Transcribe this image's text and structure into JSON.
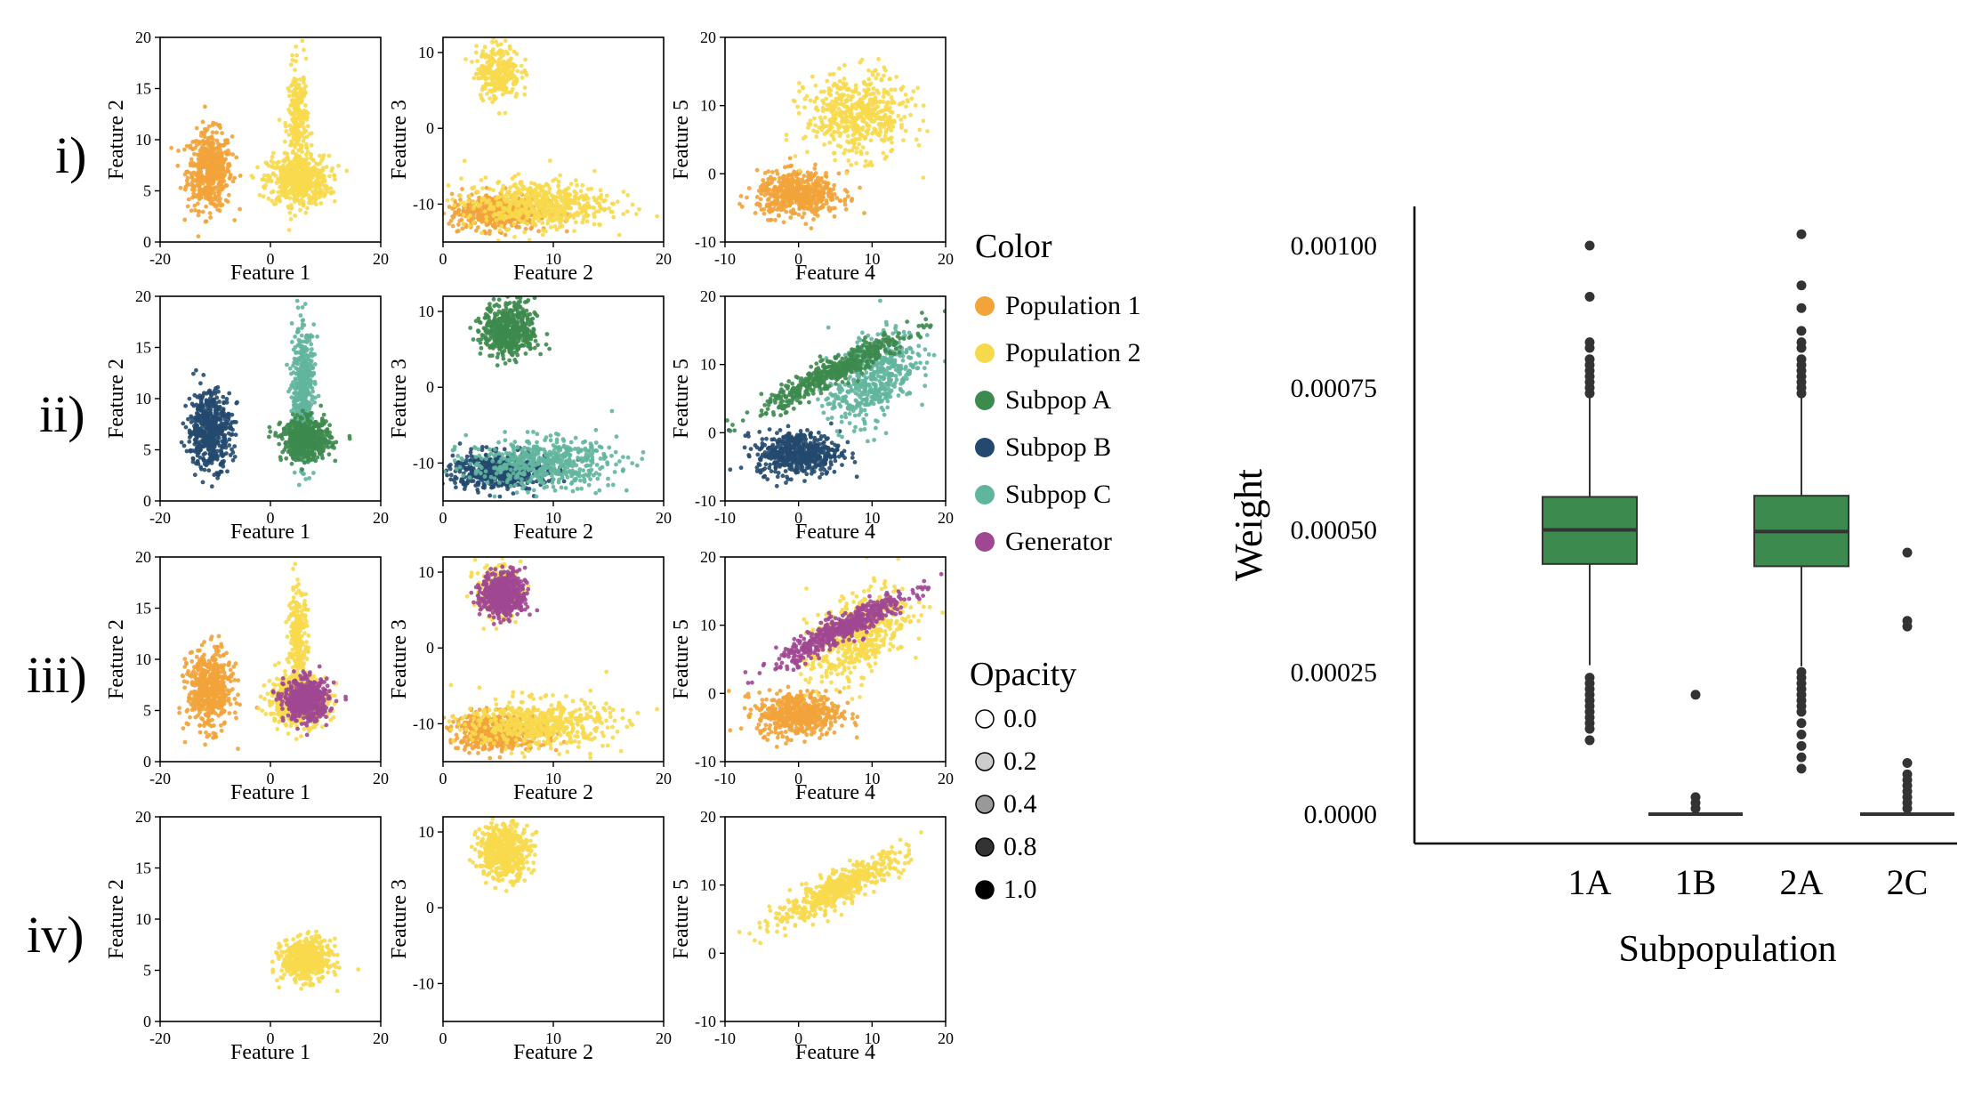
{
  "scatter_figure": {
    "row_labels": [
      "i)",
      "ii)",
      "iii)",
      "iv)"
    ],
    "panel_axes": [
      {
        "xlabel": "Feature 1",
        "ylabel": "Feature 2",
        "xticks": [
          -20,
          0,
          20
        ],
        "yticks": [
          0,
          5,
          10,
          15,
          20
        ],
        "xlim": [
          -20,
          20
        ],
        "ylim": [
          0,
          20
        ]
      },
      {
        "xlabel": "Feature 2",
        "ylabel": "Feature 3",
        "xticks": [
          0,
          10,
          20
        ],
        "yticks": [
          -10,
          0,
          10
        ],
        "xlim": [
          0,
          20
        ],
        "ylim": [
          -15,
          12
        ]
      },
      {
        "xlabel": "Feature 4",
        "ylabel": "Feature 5",
        "xticks": [
          -10,
          0,
          10,
          20
        ],
        "yticks": [
          -10,
          0,
          10,
          20
        ],
        "xlim": [
          -10,
          20
        ],
        "ylim": [
          -10,
          20
        ]
      }
    ]
  },
  "legend": {
    "color_title": "Color",
    "color_items": [
      {
        "label": "Population 1",
        "color": "#f2a33a"
      },
      {
        "label": "Population 2",
        "color": "#f7d94c"
      },
      {
        "label": "Subpop A",
        "color": "#3d8a4e"
      },
      {
        "label": "Subpop B",
        "color": "#24496e"
      },
      {
        "label": "Subpop C",
        "color": "#62b59d"
      },
      {
        "label": "Generator",
        "color": "#a04792"
      }
    ],
    "opacity_title": "Opacity",
    "opacity_items": [
      {
        "label": "0.0",
        "value": 0.0
      },
      {
        "label": "0.2",
        "value": 0.2
      },
      {
        "label": "0.4",
        "value": 0.4
      },
      {
        "label": "0.8",
        "value": 0.8
      },
      {
        "label": "1.0",
        "value": 1.0
      }
    ]
  },
  "chart_data": [
    {
      "type": "scatter",
      "description_rows": "clusters per row and panel (means and spreads in data units)",
      "rows": [
        {
          "label": "i)",
          "clusters": [
            {
              "name": "Population 1",
              "color": "#f2a33a",
              "panels": [
                {
                  "cx": -11,
                  "cy": 7,
                  "sx": 2,
                  "sy": 1.9
                },
                {
                  "cx": 5,
                  "cy": -11,
                  "sx": 2.2,
                  "sy": 1.2
                },
                {
                  "cx": 0,
                  "cy": -3,
                  "sx": 2.8,
                  "sy": 1.6
                }
              ]
            },
            {
              "name": "Population 2",
              "color": "#f7d94c",
              "panels": [
                {
                  "cx": 5,
                  "cy": 6,
                  "sx": 2.8,
                  "sy": 1.2,
                  "extra": {
                    "cx": 5,
                    "cy": 11.5,
                    "sx": 0.9,
                    "sy": 2.8
                  }
                },
                {
                  "cx": 8.5,
                  "cy": -10,
                  "sx": 3.3,
                  "sy": 1.6,
                  "extra": {
                    "cx": 5,
                    "cy": 7.5,
                    "sx": 1,
                    "sy": 1.8
                  }
                },
                {
                  "cx": 8,
                  "cy": 8.5,
                  "sx": 3.5,
                  "sy": 3
                }
              ]
            }
          ]
        },
        {
          "label": "ii)",
          "clusters": [
            {
              "name": "Subpop B",
              "color": "#24496e",
              "panels": [
                {
                  "cx": -11,
                  "cy": 7,
                  "sx": 2,
                  "sy": 1.9
                },
                {
                  "cx": 5,
                  "cy": -11,
                  "sx": 2.2,
                  "sy": 1.2
                },
                {
                  "cx": 0,
                  "cy": -3,
                  "sx": 2.8,
                  "sy": 1.6
                }
              ]
            },
            {
              "name": "Subpop C",
              "color": "#62b59d",
              "panels": [
                {
                  "cx": 6,
                  "cy": 10.5,
                  "sx": 1,
                  "sy": 3.2
                },
                {
                  "cx": 9,
                  "cy": -10,
                  "sx": 3.3,
                  "sy": 1.6
                },
                {
                  "cx": 10,
                  "cy": 8,
                  "sx": 3,
                  "sy": 3
                }
              ]
            },
            {
              "name": "Subpop A",
              "color": "#3d8a4e",
              "panels": [
                {
                  "cx": 6.5,
                  "cy": 6,
                  "sx": 2.2,
                  "sy": 1
                },
                {
                  "cx": 6,
                  "cy": 7.5,
                  "sx": 1.2,
                  "sy": 1.8
                },
                {
                  "cx": 5,
                  "cy": 9,
                  "sx": 5,
                  "sy": 1
                }
              ]
            }
          ]
        },
        {
          "label": "iii)",
          "clusters": [
            {
              "name": "Population 1",
              "color": "#f2a33a",
              "panels": [
                {
                  "cx": -11,
                  "cy": 7,
                  "sx": 2,
                  "sy": 1.9
                },
                {
                  "cx": 5,
                  "cy": -11,
                  "sx": 2.2,
                  "sy": 1.2
                },
                {
                  "cx": 0,
                  "cy": -3,
                  "sx": 2.8,
                  "sy": 1.6
                }
              ]
            },
            {
              "name": "Population 2",
              "color": "#f7d94c",
              "panels": [
                {
                  "cx": 5,
                  "cy": 6,
                  "sx": 2.8,
                  "sy": 1.2,
                  "extra": {
                    "cx": 5,
                    "cy": 11.5,
                    "sx": 0.9,
                    "sy": 2.8
                  }
                },
                {
                  "cx": 8.5,
                  "cy": -10,
                  "sx": 3.3,
                  "sy": 1.6,
                  "extra": {
                    "cx": 5,
                    "cy": 7.5,
                    "sx": 1,
                    "sy": 1.8
                  }
                },
                {
                  "cx": 8,
                  "cy": 8.5,
                  "sx": 3.5,
                  "sy": 3
                }
              ]
            },
            {
              "name": "Generator",
              "color": "#a04792",
              "panels": [
                {
                  "cx": 6.5,
                  "cy": 6,
                  "sx": 2,
                  "sy": 1
                },
                {
                  "cx": 5.5,
                  "cy": 7,
                  "sx": 1,
                  "sy": 1.5
                },
                {
                  "cx": 6,
                  "cy": 9.5,
                  "sx": 4.5,
                  "sy": 1
                }
              ]
            }
          ]
        },
        {
          "label": "iv)",
          "clusters": [
            {
              "name": "Population 2",
              "color": "#f7d94c",
              "panels": [
                {
                  "cx": 6.5,
                  "cy": 6,
                  "sx": 2.2,
                  "sy": 1
                },
                {
                  "cx": 5.5,
                  "cy": 7.5,
                  "sx": 1.2,
                  "sy": 1.8
                },
                {
                  "cx": 5.5,
                  "cy": 9.5,
                  "sx": 4.5,
                  "sy": 1.2
                }
              ]
            }
          ]
        }
      ]
    },
    {
      "type": "box",
      "xlabel": "Subpopulation",
      "ylabel": "Weight",
      "categories": [
        "1A",
        "1B",
        "2A",
        "2C"
      ],
      "box_color": "#3d8a4e",
      "ylim": [
        -2e-05,
        0.00108
      ],
      "yticks": [
        {
          "value": 0.0,
          "label": "0.0000"
        },
        {
          "value": 0.00025,
          "label": "0.00025"
        },
        {
          "value": 0.0005,
          "label": "0.00050"
        },
        {
          "value": 0.00075,
          "label": "0.00075"
        },
        {
          "value": 0.001,
          "label": "0.00100"
        }
      ],
      "boxes": [
        {
          "category": "1A",
          "q1": 0.00044,
          "median": 0.0005,
          "q3": 0.000558,
          "whisker_low": 0.000262,
          "whisker_high": 0.000735,
          "outliers": [
            0.001,
            0.00091,
            0.00083,
            0.00082,
            0.0008,
            0.00079,
            0.00078,
            0.00077,
            0.00076,
            0.00075,
            0.00074,
            0.00024,
            0.00023,
            0.00022,
            0.00021,
            0.0002,
            0.00019,
            0.00018,
            0.00017,
            0.00016,
            0.00015,
            0.00013
          ]
        },
        {
          "category": "1B",
          "q1": 0.0,
          "median": 0.0,
          "q3": 0.0,
          "whisker_low": 0.0,
          "whisker_high": 0.0,
          "outliers": [
            0.00021,
            3e-05,
            2e-05,
            1e-05
          ]
        },
        {
          "category": "2A",
          "q1": 0.000436,
          "median": 0.000497,
          "q3": 0.00056,
          "whisker_low": 0.00026,
          "whisker_high": 0.000738,
          "outliers": [
            0.00102,
            0.00093,
            0.00089,
            0.00085,
            0.00083,
            0.00082,
            0.0008,
            0.00079,
            0.00078,
            0.00077,
            0.00076,
            0.00075,
            0.00074,
            0.00025,
            0.00024,
            0.00023,
            0.00022,
            0.00021,
            0.0002,
            0.00019,
            0.00018,
            0.00016,
            0.00014,
            0.00012,
            0.0001,
            8e-05
          ]
        },
        {
          "category": "2C",
          "q1": 0.0,
          "median": 0.0,
          "q3": 0.0,
          "whisker_low": 0.0,
          "whisker_high": 0.0,
          "outliers": [
            0.00046,
            0.00034,
            0.00033,
            9e-05,
            7e-05,
            6e-05,
            5e-05,
            4e-05,
            3e-05,
            2e-05,
            1e-05
          ]
        }
      ]
    }
  ]
}
